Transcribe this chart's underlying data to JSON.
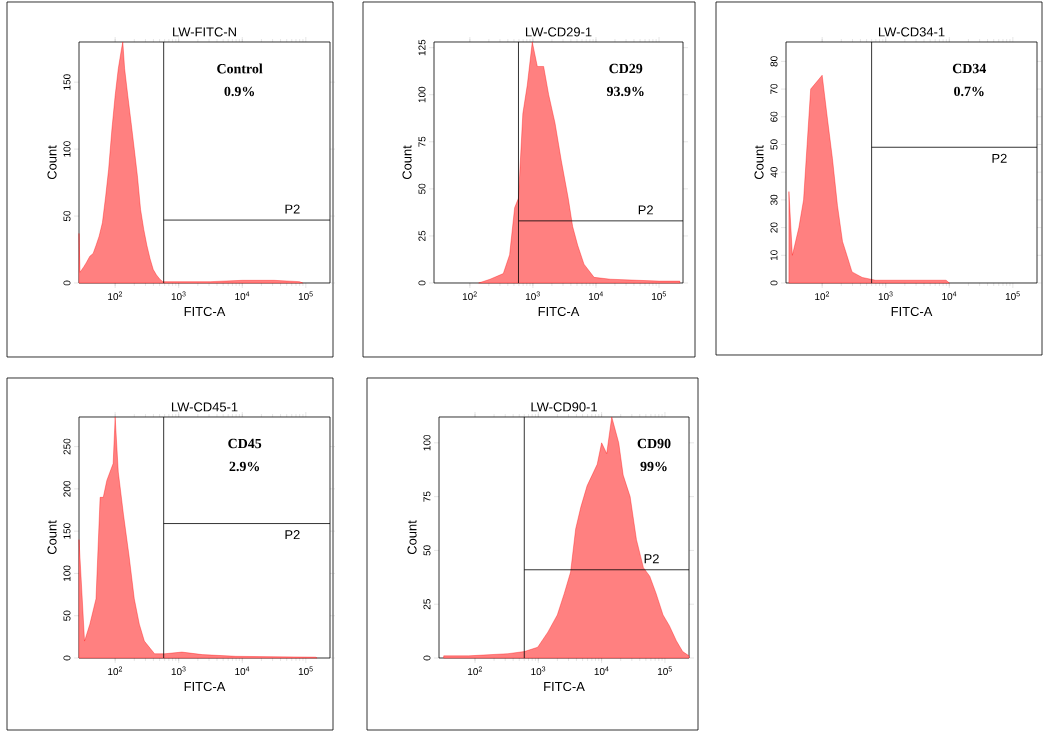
{
  "chart_data": [
    {
      "type": "area",
      "title": "LW-FITC-N",
      "xlabel": "FITC-A",
      "ylabel": "Count",
      "log": "x",
      "xlim": [
        27,
        240000
      ],
      "xticks": [
        {
          "value": 100,
          "label": "10$^{2}$"
        },
        {
          "value": 1000,
          "label": "10$^{3}$"
        },
        {
          "value": 10000,
          "label": "10$^{4}$"
        },
        {
          "value": 100000,
          "label": "10$^{5}$"
        }
      ],
      "ylim": [
        0,
        180
      ],
      "yticks": [
        0,
        50,
        100,
        150
      ],
      "annotations": [
        "Control",
        "0.9%"
      ],
      "ref_lines": [
        {
          "axis": "x",
          "value": 580
        }
      ],
      "series": [
        {
          "color": "#ff0000",
          "x": [
            27,
            28,
            32,
            35,
            40,
            45,
            50,
            56,
            63,
            71,
            79,
            89,
            100,
            112,
            126,
            132,
            141,
            158,
            178,
            200,
            224,
            251,
            282,
            316,
            355,
            398,
            447,
            501,
            562,
            631,
            1000,
            3162,
            10000,
            31623,
            79433,
            89125
          ],
          "values": [
            37,
            8,
            12,
            15,
            20,
            22,
            28,
            35,
            45,
            65,
            85,
            115,
            140,
            160,
            175,
            180,
            160,
            140,
            120,
            100,
            80,
            55,
            40,
            28,
            18,
            10,
            6,
            3,
            1,
            1,
            1,
            1,
            2,
            2,
            1,
            0
          ]
        },
        {
          "type": "line",
          "name": "P2",
          "color": "#000000",
          "x": [
            580,
            240000
          ],
          "values": [
            47,
            47
          ]
        }
      ]
    },
    {
      "type": "area",
      "title": "LW-CD29-1",
      "xlabel": "FITC-A",
      "ylabel": "Count",
      "log": "x",
      "xlim": [
        27,
        240000
      ],
      "xticks": [
        {
          "value": 100,
          "label": "10$^{2}$"
        },
        {
          "value": 1000,
          "label": "10$^{3}$"
        },
        {
          "value": 10000,
          "label": "10$^{4}$"
        },
        {
          "value": 100000,
          "label": "10$^{5}$"
        }
      ],
      "ylim": [
        0,
        128
      ],
      "yticks": [
        0,
        25,
        50,
        75,
        100,
        125
      ],
      "annotations": [
        "CD29",
        "93.9%"
      ],
      "ref_lines": [
        {
          "axis": "x",
          "value": 590
        }
      ],
      "series": [
        {
          "color": "#ff0000",
          "x": [
            138,
            209,
            339,
            427,
            513,
            589,
            692,
            813,
            977,
            1175,
            1479,
            1778,
            2239,
            2818,
            3631,
            4266,
            5129,
            6457,
            9333,
            16982,
            100000,
            213796
          ],
          "values": [
            0,
            2,
            5,
            15,
            40,
            45,
            90,
            105,
            128,
            115,
            115,
            100,
            85,
            65,
            45,
            30,
            20,
            10,
            3,
            2,
            1,
            1
          ]
        },
        {
          "type": "line",
          "name": "P2",
          "color": "#000000",
          "x": [
            590,
            240000
          ],
          "values": [
            33,
            33
          ]
        }
      ]
    },
    {
      "type": "area",
      "title": "LW-CD34-1",
      "xlabel": "FITC-A",
      "ylabel": "Count",
      "log": "x",
      "xlim": [
        27,
        240000
      ],
      "xticks": [
        {
          "value": 100,
          "label": "10$^{2}$"
        },
        {
          "value": 1000,
          "label": "10$^{3}$"
        },
        {
          "value": 10000,
          "label": "10$^{4}$"
        },
        {
          "value": 100000,
          "label": "10$^{5}$"
        }
      ],
      "ylim": [
        0,
        87
      ],
      "yticks": [
        0,
        10,
        20,
        30,
        40,
        50,
        60,
        70,
        80
      ],
      "annotations": [
        "CD34",
        "0.7%"
      ],
      "ref_lines": [
        {
          "axis": "x",
          "value": 600
        }
      ],
      "series": [
        {
          "color": "#ff0000",
          "x": [
            30,
            34,
            43,
            51,
            58,
            66,
            74,
            89,
            100,
            120,
            145,
            174,
            209,
            245,
            295,
            427,
            692,
            1000,
            8913,
            10000
          ],
          "values": [
            33,
            10,
            20,
            30,
            50,
            70,
            null,
            null,
            75,
            60,
            45,
            28,
            15,
            10,
            4,
            2,
            1,
            1,
            1,
            0
          ]
        },
        {
          "type": "line",
          "name": "P2",
          "color": "#000000",
          "x": [
            600,
            240000
          ],
          "values": [
            49,
            49
          ]
        }
      ]
    },
    {
      "type": "area",
      "title": "LW-CD45-1",
      "xlabel": "FITC-A",
      "ylabel": "Count",
      "log": "x",
      "xlim": [
        27,
        240000
      ],
      "xticks": [
        {
          "value": 100,
          "label": "10$^{2}$"
        },
        {
          "value": 1000,
          "label": "10$^{3}$"
        },
        {
          "value": 10000,
          "label": "10$^{4}$"
        },
        {
          "value": 100000,
          "label": "10$^{5}$"
        }
      ],
      "ylim": [
        0,
        285
      ],
      "yticks": [
        0,
        50,
        100,
        150,
        200,
        250
      ],
      "annotations": [
        "CD45",
        "2.9%"
      ],
      "ref_lines": [
        {
          "axis": "x",
          "value": 580
        }
      ],
      "series": [
        {
          "color": "#ff0000",
          "x": [
            27,
            33,
            40,
            50,
            58,
            65,
            74,
            93,
            100,
            112,
            135,
            166,
            200,
            240,
            288,
            417,
            603,
            1122,
            2344,
            7943,
            141254,
            150000
          ],
          "values": [
            140,
            20,
            40,
            70,
            190,
            190,
            210,
            230,
            285,
            220,
            170,
            120,
            70,
            40,
            20,
            5,
            5,
            7,
            4,
            2,
            1,
            0
          ]
        },
        {
          "type": "line",
          "name": "P2",
          "color": "#000000",
          "x": [
            580,
            240000
          ],
          "values": [
            159,
            159
          ]
        }
      ]
    },
    {
      "type": "area",
      "title": "LW-CD90-1",
      "xlabel": "FITC-A",
      "ylabel": "Count",
      "log": "x",
      "xlim": [
        27,
        240000
      ],
      "xticks": [
        {
          "value": 100,
          "label": "10$^{2}$"
        },
        {
          "value": 1000,
          "label": "10$^{3}$"
        },
        {
          "value": 10000,
          "label": "10$^{4}$"
        },
        {
          "value": 100000,
          "label": "10$^{5}$"
        }
      ],
      "ylim": [
        0,
        112
      ],
      "yticks": [
        0,
        25,
        50,
        75,
        100
      ],
      "annotations": [
        "CD90",
        "99%"
      ],
      "ref_lines": [
        {
          "axis": "x",
          "value": 600
        }
      ],
      "series": [
        {
          "color": "#ff0000",
          "x": [
            32,
            79,
            331,
            603,
            977,
            1413,
            1995,
            2570,
            3236,
            3890,
            4677,
            5888,
            8511,
            10000,
            12023,
            14454,
            18621,
            21878,
            28184,
            35481,
            45709,
            57544,
            72444,
            93325,
            117490,
            151356,
            190546,
            239883
          ],
          "values": [
            1,
            1,
            2,
            3,
            5,
            12,
            20,
            30,
            40,
            60,
            70,
            80,
            90,
            100,
            95,
            112,
            100,
            85,
            75,
            55,
            42,
            38,
            30,
            20,
            15,
            8,
            3,
            1
          ]
        },
        {
          "type": "line",
          "name": "P2",
          "color": "#000000",
          "x": [
            600,
            240000
          ],
          "values": [
            41,
            41
          ]
        }
      ]
    }
  ]
}
